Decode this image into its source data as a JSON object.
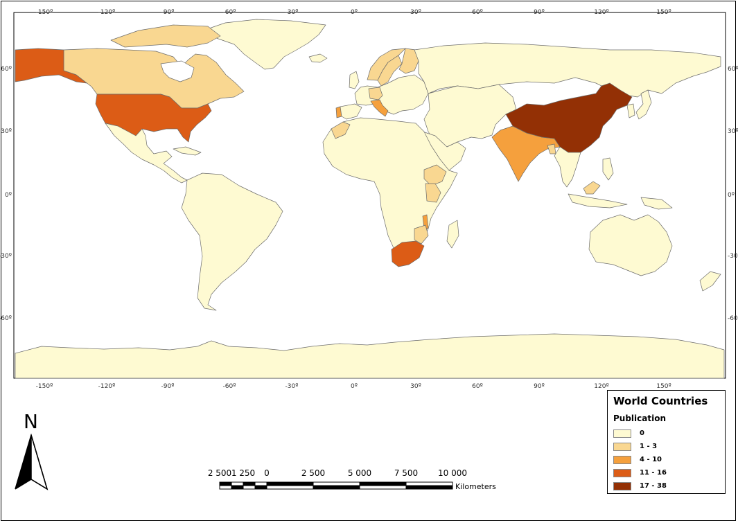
{
  "map": {
    "ocean_color": "#ffffff",
    "land_default_color": "#fefad2",
    "border_color": "#6b6b6b"
  },
  "graticule": {
    "longitude_labels": [
      "-150º",
      "-120º",
      "-90º",
      "-60º",
      "-30º",
      "0º",
      "30º",
      "60º",
      "90º",
      "120º",
      "150º"
    ],
    "latitude_labels": [
      "60º",
      "30º",
      "0º",
      "-30º",
      "-60º"
    ]
  },
  "legend": {
    "title": "World Countries",
    "subtitle": "Publication",
    "classes": [
      {
        "label": "0",
        "color": "#fefad2"
      },
      {
        "label": "1 - 3",
        "color": "#f9d791"
      },
      {
        "label": "4 - 10",
        "color": "#f5a03d"
      },
      {
        "label": "11 - 16",
        "color": "#dc5c16"
      },
      {
        "label": "17 - 38",
        "color": "#933005"
      }
    ]
  },
  "country_classes": {
    "united-states": "11 - 16",
    "alaska": "11 - 16",
    "canada": "1 - 3",
    "china": "17 - 38",
    "india": "4 - 10",
    "south-africa": "11 - 16",
    "italy": "4 - 10",
    "portugal": "4 - 10",
    "morocco": "1 - 3",
    "sweden": "1 - 3",
    "norway": "1 - 3",
    "finland": "1 - 3",
    "germany": "1 - 3",
    "ethiopia": "1 - 3",
    "kenya": "1 - 3",
    "malawi": "4 - 10",
    "mozambique": "1 - 3",
    "zimbabwe": "1 - 3",
    "bangladesh": "1 - 3",
    "malaysia": "1 - 3"
  },
  "north_arrow": {
    "letter": "N"
  },
  "scale_bar": {
    "labels": [
      "2 500",
      "1 250",
      "0",
      "2 500",
      "5 000",
      "7 500",
      "10 000"
    ],
    "unit": "Kilometers"
  }
}
